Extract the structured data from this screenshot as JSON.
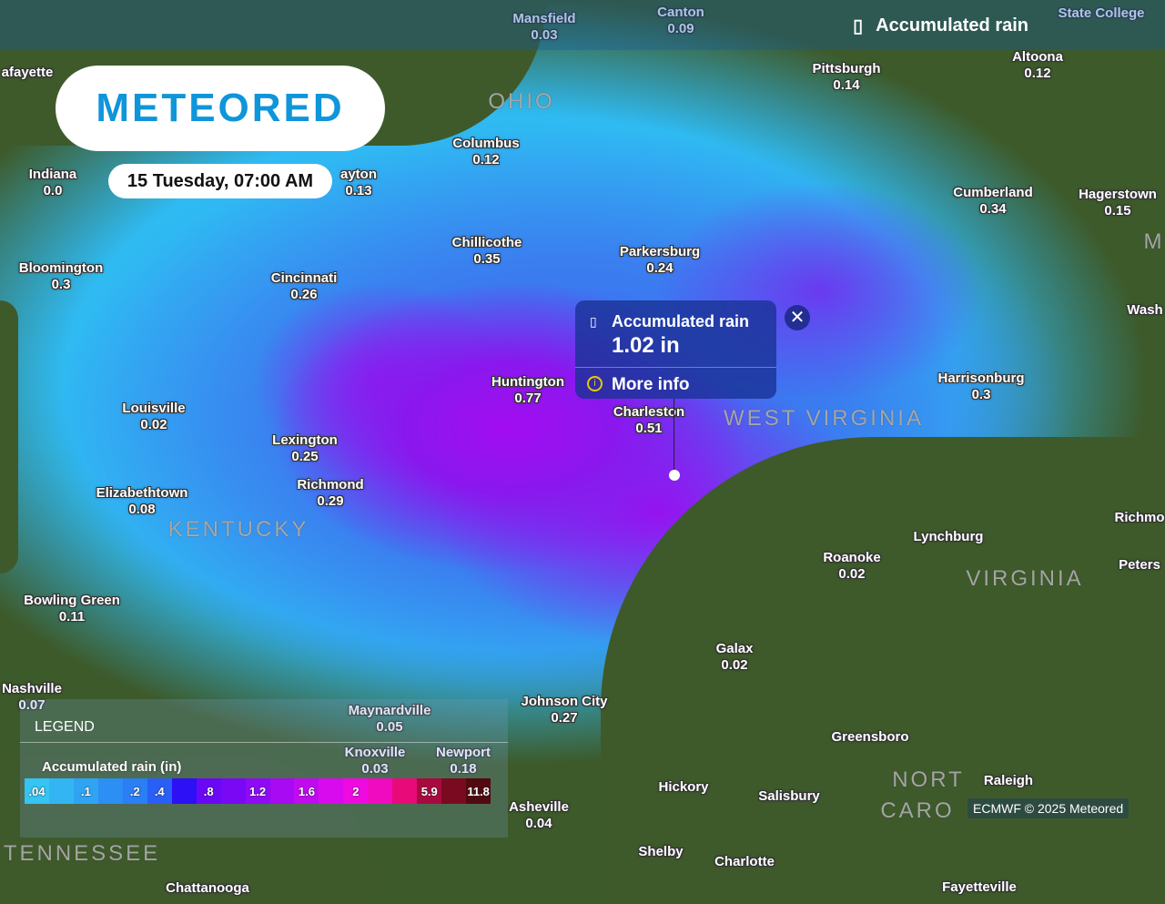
{
  "header": {
    "layer_icon": "rain-gauge-icon",
    "title": "Accumulated rain"
  },
  "logo": "METEORED",
  "date": "15 Tuesday, 07:00 AM",
  "popup": {
    "icon": "rain-gauge-icon",
    "title": "Accumulated rain",
    "value": "1.02 in",
    "more_info": "More info",
    "info_icon": "info-icon",
    "close_icon": "close-icon"
  },
  "legend": {
    "title": "LEGEND",
    "subtitle": "Accumulated rain (in)",
    "scale": [
      {
        "label": ".04",
        "color": "#35c4f3"
      },
      {
        "label": "",
        "color": "#33b5f3"
      },
      {
        "label": ".1",
        "color": "#2fa4f3"
      },
      {
        "label": "",
        "color": "#2b8ff4"
      },
      {
        "label": ".2",
        "color": "#2a7ff5"
      },
      {
        "label": ".4",
        "color": "#2a5ff5"
      },
      {
        "label": "",
        "color": "#2d10f5"
      },
      {
        "label": ".8",
        "color": "#6a08f5"
      },
      {
        "label": "",
        "color": "#7a08f5"
      },
      {
        "label": "1.2",
        "color": "#8f0af5"
      },
      {
        "label": "",
        "color": "#a70af3"
      },
      {
        "label": "1.6",
        "color": "#c00af0"
      },
      {
        "label": "",
        "color": "#d80aee"
      },
      {
        "label": "2",
        "color": "#ee0ae0"
      },
      {
        "label": "",
        "color": "#f00ac0"
      },
      {
        "label": "",
        "color": "#e80a78"
      },
      {
        "label": "5.9",
        "color": "#a80a40"
      },
      {
        "label": "",
        "color": "#7a0a20"
      },
      {
        "label": "11.8",
        "color": "#520a10"
      }
    ]
  },
  "credit": "ECMWF © 2025 Meteored",
  "states": [
    "OHIO",
    "WEST VIRGINIA",
    "KENTUCKY",
    "VIRGINIA",
    "NORT",
    "CARO",
    "TENNESSEE",
    "M"
  ],
  "cities": [
    {
      "name": "Mansfield",
      "value": "0.03"
    },
    {
      "name": "Canton",
      "value": "0.09"
    },
    {
      "name": "State College",
      "value": ""
    },
    {
      "name": "Pittsburgh",
      "value": "0.14"
    },
    {
      "name": "Altoona",
      "value": "0.12"
    },
    {
      "name": "afayette",
      "value": ""
    },
    {
      "name": "Columbus",
      "value": "0.12"
    },
    {
      "name": "Indiana",
      "value": "0.0"
    },
    {
      "name": "ayton",
      "value": "0.13"
    },
    {
      "name": "Cumberland",
      "value": "0.34"
    },
    {
      "name": "Hagerstown",
      "value": "0.15"
    },
    {
      "name": "Chillicothe",
      "value": "0.35"
    },
    {
      "name": "Parkersburg",
      "value": "0.24"
    },
    {
      "name": "Bloomington",
      "value": "0.3"
    },
    {
      "name": "Cincinnati",
      "value": "0.26"
    },
    {
      "name": "Wash",
      "value": ""
    },
    {
      "name": "Huntington",
      "value": "0.77"
    },
    {
      "name": "Charleston",
      "value": "0.51"
    },
    {
      "name": "Harrisonburg",
      "value": "0.3"
    },
    {
      "name": "Louisville",
      "value": "0.02"
    },
    {
      "name": "Lexington",
      "value": "0.25"
    },
    {
      "name": "Richmond",
      "value": "0.29"
    },
    {
      "name": "Elizabethtown",
      "value": "0.08"
    },
    {
      "name": "Lynchburg",
      "value": ""
    },
    {
      "name": "Richmo",
      "value": ""
    },
    {
      "name": "Roanoke",
      "value": "0.02"
    },
    {
      "name": "Peters",
      "value": ""
    },
    {
      "name": "Bowling Green",
      "value": "0.11"
    },
    {
      "name": "Galax",
      "value": "0.02"
    },
    {
      "name": "Johnson City",
      "value": "0.27"
    },
    {
      "name": "Maynardville",
      "value": "0.05"
    },
    {
      "name": "Nashville",
      "value": "0.07"
    },
    {
      "name": "Knoxville",
      "value": "0.03"
    },
    {
      "name": "Newport",
      "value": "0.18"
    },
    {
      "name": "Greensboro",
      "value": ""
    },
    {
      "name": "Raleigh",
      "value": ""
    },
    {
      "name": "Hickory",
      "value": ""
    },
    {
      "name": "Salisbury",
      "value": ""
    },
    {
      "name": "Asheville",
      "value": "0.04"
    },
    {
      "name": "Shelby",
      "value": ""
    },
    {
      "name": "Charlotte",
      "value": ""
    },
    {
      "name": "Chattanooga",
      "value": ""
    },
    {
      "name": "Fayetteville",
      "value": ""
    }
  ]
}
